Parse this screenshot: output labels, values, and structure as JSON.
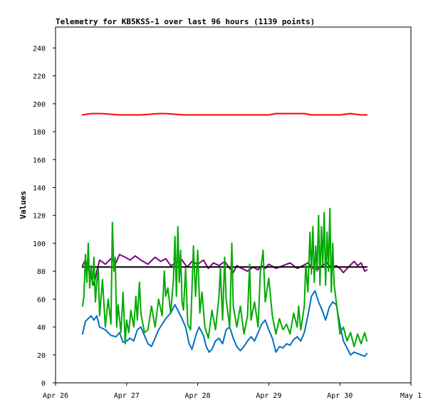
{
  "chart_data": {
    "type": "line",
    "title": "Telemetry for KB5KSS-1 over last 96 hours (1139 points)",
    "xlabel": "",
    "ylabel": "Values",
    "x_axis": {
      "ticks": [
        "Apr 26",
        "Apr 27",
        "Apr 28",
        "Apr 29",
        "Apr 30",
        "May 1"
      ],
      "range_days": [
        0,
        5
      ]
    },
    "y_axis": {
      "ticks": [
        0,
        20,
        40,
        60,
        80,
        100,
        120,
        140,
        160,
        180,
        200,
        220,
        240
      ],
      "ylim": [
        0,
        255
      ]
    },
    "grid": false,
    "legend": "none",
    "series": [
      {
        "color": "#ff0000",
        "points": [
          [
            0.38,
            192
          ],
          [
            0.5,
            193
          ],
          [
            0.65,
            193
          ],
          [
            0.9,
            192
          ],
          [
            1.2,
            192
          ],
          [
            1.45,
            193
          ],
          [
            1.55,
            193
          ],
          [
            1.8,
            192
          ],
          [
            2.4,
            192
          ],
          [
            3.0,
            192
          ],
          [
            3.1,
            193
          ],
          [
            3.3,
            193
          ],
          [
            3.5,
            193
          ],
          [
            3.6,
            192
          ],
          [
            4.0,
            192
          ],
          [
            4.15,
            193
          ],
          [
            4.3,
            192
          ],
          [
            4.38,
            192
          ]
        ]
      },
      {
        "color": "#800080",
        "points": [
          [
            0.38,
            84
          ],
          [
            0.42,
            88
          ],
          [
            0.46,
            82
          ],
          [
            0.5,
            76
          ],
          [
            0.54,
            70
          ],
          [
            0.58,
            80
          ],
          [
            0.62,
            88
          ],
          [
            0.7,
            85
          ],
          [
            0.78,
            89
          ],
          [
            0.85,
            86
          ],
          [
            0.9,
            92
          ],
          [
            0.98,
            90
          ],
          [
            1.05,
            88
          ],
          [
            1.12,
            91
          ],
          [
            1.2,
            88
          ],
          [
            1.3,
            85
          ],
          [
            1.4,
            90
          ],
          [
            1.48,
            87
          ],
          [
            1.55,
            89
          ],
          [
            1.62,
            84
          ],
          [
            1.7,
            86
          ],
          [
            1.78,
            88
          ],
          [
            1.85,
            83
          ],
          [
            1.92,
            87
          ],
          [
            2.0,
            85
          ],
          [
            2.08,
            88
          ],
          [
            2.15,
            82
          ],
          [
            2.22,
            86
          ],
          [
            2.3,
            84
          ],
          [
            2.38,
            87
          ],
          [
            2.45,
            82
          ],
          [
            2.5,
            79
          ],
          [
            2.55,
            84
          ],
          [
            2.62,
            82
          ],
          [
            2.7,
            80
          ],
          [
            2.78,
            83
          ],
          [
            2.85,
            81
          ],
          [
            2.9,
            84
          ],
          [
            2.95,
            82
          ],
          [
            3.0,
            85
          ],
          [
            3.1,
            82
          ],
          [
            3.2,
            84
          ],
          [
            3.3,
            86
          ],
          [
            3.4,
            82
          ],
          [
            3.48,
            84
          ],
          [
            3.55,
            86
          ],
          [
            3.6,
            83
          ],
          [
            3.68,
            81
          ],
          [
            3.75,
            84
          ],
          [
            3.82,
            86
          ],
          [
            3.88,
            82
          ],
          [
            3.95,
            84
          ],
          [
            4.0,
            82
          ],
          [
            4.05,
            79
          ],
          [
            4.12,
            83
          ],
          [
            4.2,
            87
          ],
          [
            4.25,
            84
          ],
          [
            4.3,
            86
          ],
          [
            4.35,
            80
          ],
          [
            4.38,
            81
          ]
        ]
      },
      {
        "color": "#000000",
        "points": [
          [
            0.38,
            83
          ],
          [
            4.38,
            83
          ]
        ]
      },
      {
        "color": "#0070c0",
        "points": [
          [
            0.38,
            35
          ],
          [
            0.42,
            44
          ],
          [
            0.46,
            46
          ],
          [
            0.5,
            48
          ],
          [
            0.54,
            45
          ],
          [
            0.58,
            48
          ],
          [
            0.62,
            40
          ],
          [
            0.7,
            38
          ],
          [
            0.78,
            34
          ],
          [
            0.85,
            33
          ],
          [
            0.9,
            36
          ],
          [
            0.95,
            29
          ],
          [
            1.0,
            30
          ],
          [
            1.05,
            32
          ],
          [
            1.1,
            30
          ],
          [
            1.15,
            38
          ],
          [
            1.2,
            40
          ],
          [
            1.25,
            34
          ],
          [
            1.3,
            28
          ],
          [
            1.35,
            26
          ],
          [
            1.4,
            32
          ],
          [
            1.45,
            38
          ],
          [
            1.5,
            42
          ],
          [
            1.55,
            46
          ],
          [
            1.62,
            50
          ],
          [
            1.68,
            56
          ],
          [
            1.72,
            52
          ],
          [
            1.78,
            46
          ],
          [
            1.83,
            40
          ],
          [
            1.88,
            28
          ],
          [
            1.92,
            24
          ],
          [
            1.98,
            35
          ],
          [
            2.02,
            40
          ],
          [
            2.08,
            34
          ],
          [
            2.12,
            26
          ],
          [
            2.16,
            22
          ],
          [
            2.2,
            24
          ],
          [
            2.25,
            30
          ],
          [
            2.3,
            32
          ],
          [
            2.35,
            28
          ],
          [
            2.4,
            38
          ],
          [
            2.45,
            40
          ],
          [
            2.5,
            32
          ],
          [
            2.55,
            26
          ],
          [
            2.6,
            23
          ],
          [
            2.65,
            26
          ],
          [
            2.7,
            30
          ],
          [
            2.75,
            33
          ],
          [
            2.8,
            30
          ],
          [
            2.85,
            36
          ],
          [
            2.9,
            42
          ],
          [
            2.95,
            45
          ],
          [
            3.0,
            38
          ],
          [
            3.05,
            32
          ],
          [
            3.1,
            22
          ],
          [
            3.15,
            26
          ],
          [
            3.2,
            25
          ],
          [
            3.25,
            28
          ],
          [
            3.3,
            27
          ],
          [
            3.35,
            31
          ],
          [
            3.4,
            33
          ],
          [
            3.45,
            30
          ],
          [
            3.5,
            36
          ],
          [
            3.55,
            48
          ],
          [
            3.6,
            62
          ],
          [
            3.65,
            66
          ],
          [
            3.7,
            58
          ],
          [
            3.75,
            52
          ],
          [
            3.8,
            45
          ],
          [
            3.85,
            54
          ],
          [
            3.9,
            58
          ],
          [
            3.95,
            56
          ],
          [
            4.0,
            42
          ],
          [
            4.05,
            30
          ],
          [
            4.1,
            25
          ],
          [
            4.15,
            20
          ],
          [
            4.2,
            22
          ],
          [
            4.25,
            21
          ],
          [
            4.3,
            20
          ],
          [
            4.35,
            19
          ],
          [
            4.38,
            21
          ]
        ]
      },
      {
        "color": "#00aa00",
        "points": [
          [
            0.38,
            55
          ],
          [
            0.4,
            62
          ],
          [
            0.42,
            92
          ],
          [
            0.44,
            72
          ],
          [
            0.46,
            100
          ],
          [
            0.48,
            68
          ],
          [
            0.5,
            84
          ],
          [
            0.52,
            70
          ],
          [
            0.54,
            90
          ],
          [
            0.56,
            58
          ],
          [
            0.58,
            72
          ],
          [
            0.6,
            82
          ],
          [
            0.62,
            48
          ],
          [
            0.66,
            74
          ],
          [
            0.7,
            40
          ],
          [
            0.74,
            60
          ],
          [
            0.78,
            42
          ],
          [
            0.8,
            115
          ],
          [
            0.82,
            80
          ],
          [
            0.84,
            90
          ],
          [
            0.86,
            40
          ],
          [
            0.88,
            56
          ],
          [
            0.92,
            36
          ],
          [
            0.95,
            65
          ],
          [
            0.98,
            28
          ],
          [
            1.0,
            45
          ],
          [
            1.03,
            36
          ],
          [
            1.06,
            52
          ],
          [
            1.1,
            40
          ],
          [
            1.13,
            62
          ],
          [
            1.15,
            45
          ],
          [
            1.18,
            72
          ],
          [
            1.2,
            50
          ],
          [
            1.25,
            36
          ],
          [
            1.3,
            38
          ],
          [
            1.35,
            55
          ],
          [
            1.4,
            40
          ],
          [
            1.45,
            60
          ],
          [
            1.5,
            48
          ],
          [
            1.53,
            80
          ],
          [
            1.55,
            62
          ],
          [
            1.58,
            68
          ],
          [
            1.62,
            50
          ],
          [
            1.66,
            75
          ],
          [
            1.68,
            105
          ],
          [
            1.7,
            62
          ],
          [
            1.72,
            112
          ],
          [
            1.74,
            72
          ],
          [
            1.76,
            95
          ],
          [
            1.78,
            58
          ],
          [
            1.8,
            52
          ],
          [
            1.83,
            82
          ],
          [
            1.86,
            42
          ],
          [
            1.9,
            38
          ],
          [
            1.94,
            98
          ],
          [
            1.97,
            62
          ],
          [
            2.0,
            95
          ],
          [
            2.03,
            50
          ],
          [
            2.06,
            65
          ],
          [
            2.1,
            40
          ],
          [
            2.15,
            32
          ],
          [
            2.2,
            52
          ],
          [
            2.25,
            38
          ],
          [
            2.3,
            62
          ],
          [
            2.32,
            82
          ],
          [
            2.35,
            45
          ],
          [
            2.38,
            90
          ],
          [
            2.4,
            60
          ],
          [
            2.45,
            40
          ],
          [
            2.48,
            100
          ],
          [
            2.5,
            55
          ],
          [
            2.55,
            40
          ],
          [
            2.6,
            55
          ],
          [
            2.65,
            35
          ],
          [
            2.7,
            48
          ],
          [
            2.73,
            85
          ],
          [
            2.75,
            45
          ],
          [
            2.8,
            58
          ],
          [
            2.85,
            40
          ],
          [
            2.88,
            78
          ],
          [
            2.92,
            95
          ],
          [
            2.95,
            58
          ],
          [
            3.0,
            75
          ],
          [
            3.05,
            48
          ],
          [
            3.1,
            35
          ],
          [
            3.15,
            46
          ],
          [
            3.2,
            38
          ],
          [
            3.25,
            42
          ],
          [
            3.3,
            35
          ],
          [
            3.35,
            50
          ],
          [
            3.4,
            40
          ],
          [
            3.42,
            55
          ],
          [
            3.45,
            38
          ],
          [
            3.5,
            55
          ],
          [
            3.52,
            85
          ],
          [
            3.55,
            65
          ],
          [
            3.58,
            108
          ],
          [
            3.6,
            78
          ],
          [
            3.62,
            112
          ],
          [
            3.64,
            72
          ],
          [
            3.66,
            98
          ],
          [
            3.68,
            80
          ],
          [
            3.7,
            120
          ],
          [
            3.72,
            70
          ],
          [
            3.74,
            112
          ],
          [
            3.76,
            85
          ],
          [
            3.78,
            122
          ],
          [
            3.8,
            70
          ],
          [
            3.82,
            108
          ],
          [
            3.84,
            80
          ],
          [
            3.86,
            125
          ],
          [
            3.88,
            65
          ],
          [
            3.9,
            100
          ],
          [
            3.92,
            70
          ],
          [
            3.95,
            58
          ],
          [
            3.98,
            45
          ],
          [
            4.0,
            35
          ],
          [
            4.05,
            40
          ],
          [
            4.1,
            30
          ],
          [
            4.15,
            36
          ],
          [
            4.2,
            26
          ],
          [
            4.25,
            35
          ],
          [
            4.3,
            28
          ],
          [
            4.35,
            36
          ],
          [
            4.38,
            30
          ]
        ]
      }
    ]
  }
}
